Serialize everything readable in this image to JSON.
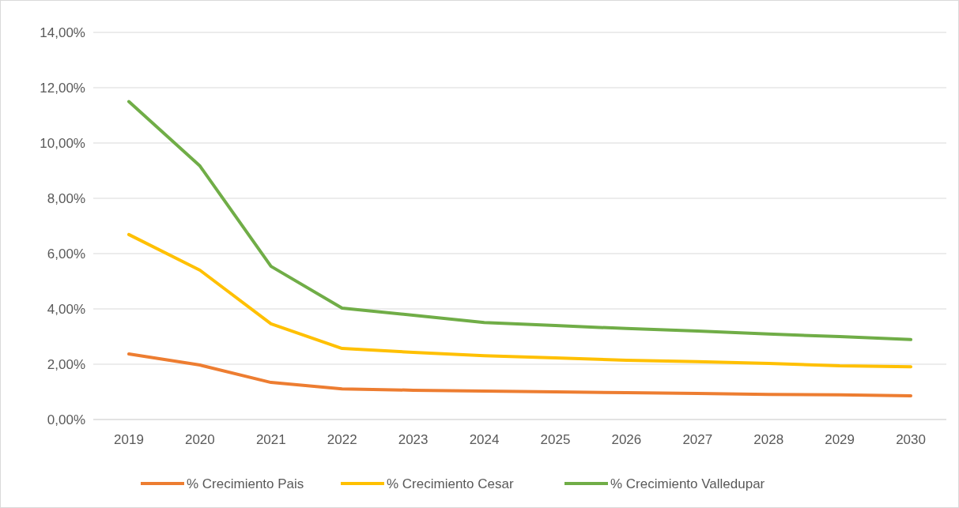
{
  "chart_data": {
    "type": "line",
    "categories": [
      "2019",
      "2020",
      "2021",
      "2022",
      "2023",
      "2024",
      "2025",
      "2026",
      "2027",
      "2028",
      "2029",
      "2030"
    ],
    "series": [
      {
        "name": "% Crecimiento Pais",
        "color": "#ed7d31",
        "values": [
          2.37,
          1.97,
          1.34,
          1.11,
          1.06,
          1.03,
          1.0,
          0.97,
          0.94,
          0.91,
          0.89,
          0.86
        ]
      },
      {
        "name": "% Crecimiento Cesar",
        "color": "#ffc000",
        "values": [
          6.69,
          5.4,
          3.46,
          2.57,
          2.43,
          2.31,
          2.23,
          2.14,
          2.09,
          2.03,
          1.94,
          1.91
        ]
      },
      {
        "name": "% Crecimiento Valledupar",
        "color": "#70ad47",
        "values": [
          11.5,
          9.17,
          5.54,
          4.03,
          3.77,
          3.51,
          3.4,
          3.29,
          3.2,
          3.09,
          3.0,
          2.89
        ]
      }
    ],
    "ylim": [
      0,
      14
    ],
    "yticks": [
      {
        "value": 0,
        "label": "0,00%"
      },
      {
        "value": 2,
        "label": "2,00%"
      },
      {
        "value": 4,
        "label": "4,00%"
      },
      {
        "value": 6,
        "label": "6,00%"
      },
      {
        "value": 8,
        "label": "8,00%"
      },
      {
        "value": 10,
        "label": "10,00%"
      },
      {
        "value": 12,
        "label": "12,00%"
      },
      {
        "value": 14,
        "label": "14,00%"
      }
    ],
    "grid": "y",
    "legend": "bottom",
    "marker": "none",
    "line_style": "solid"
  }
}
